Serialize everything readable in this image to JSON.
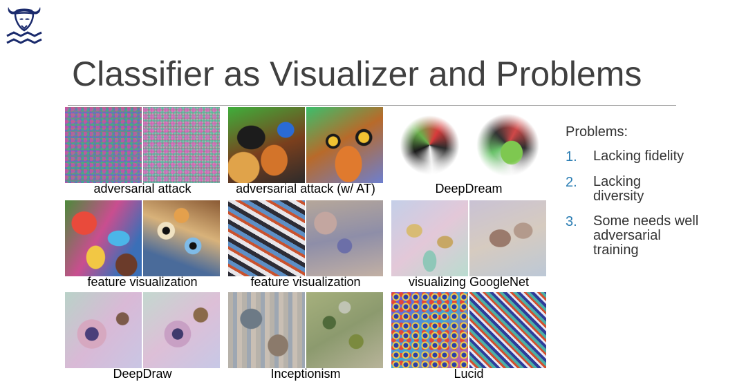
{
  "slide": {
    "title": "Classifier as Visualizer and Problems"
  },
  "logo": {
    "icon": "bull-logo-icon"
  },
  "panels": [
    {
      "caption": "adversarial attack"
    },
    {
      "caption": "adversarial attack (w/ AT)"
    },
    {
      "caption": "DeepDream"
    },
    {
      "caption": "feature visualization"
    },
    {
      "caption": "feature visualization"
    },
    {
      "caption": "visualizing GoogleNet"
    },
    {
      "caption": "DeepDraw"
    },
    {
      "caption": "Inceptionism"
    },
    {
      "caption": "Lucid"
    }
  ],
  "problems": {
    "heading": "Problems:",
    "items": [
      {
        "num": "1.",
        "text": "Lacking fidelity"
      },
      {
        "num": "2.",
        "text": "Lacking diversity"
      },
      {
        "num": "3.",
        "text": "Some needs well adversarial training"
      }
    ]
  },
  "colors": {
    "title": "#404040",
    "list_number": "#2a7db3",
    "rule": "#9a9a9a"
  }
}
